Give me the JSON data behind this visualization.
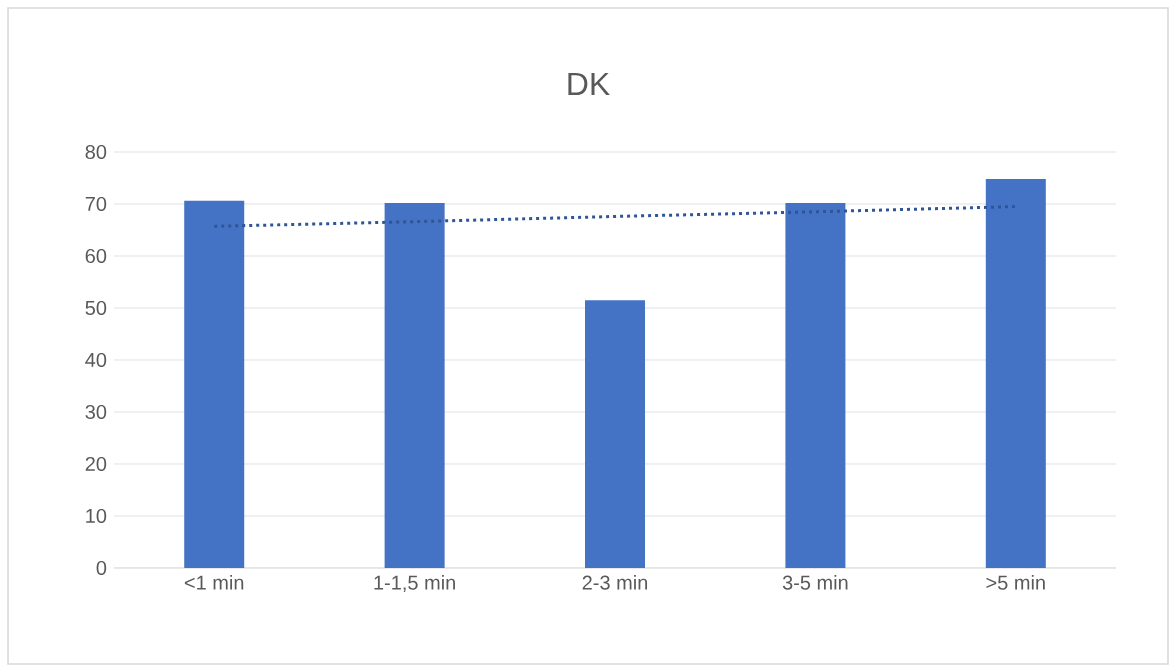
{
  "chart_data": {
    "type": "bar",
    "title": "DK",
    "categories": [
      "<1 min",
      "1-1,5 min",
      "2-3 min",
      "3-5 min",
      ">5 min"
    ],
    "series": [
      {
        "color": "#4472c4",
        "values": [
          70.6,
          70.2,
          51.5,
          70.2,
          74.8
        ]
      },
      {
        "type": "line",
        "color": "#2f5597",
        "line_style": "dotted",
        "marker": "none",
        "values": [
          65.7,
          66.6,
          67.6,
          68.5,
          69.5
        ]
      }
    ],
    "ylim": [
      0,
      80
    ],
    "yticks": [
      0,
      10,
      20,
      30,
      40,
      50,
      60,
      70,
      80
    ],
    "grid": "y",
    "legend": false
  }
}
